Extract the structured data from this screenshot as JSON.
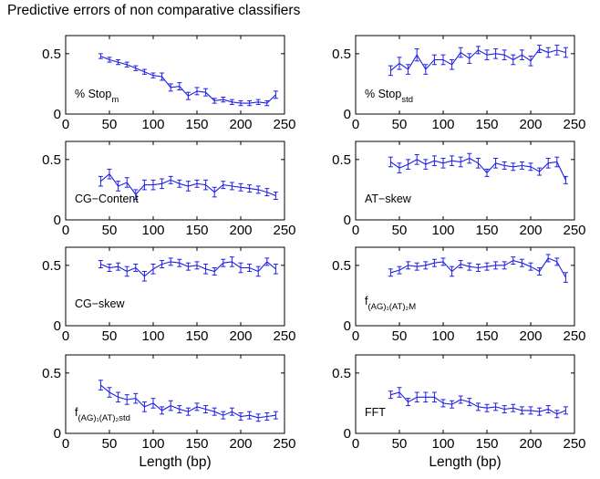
{
  "title": "Predictive errors of non comparative classifiers",
  "colors": {
    "series": "#1f1fe6",
    "axes": "#000000",
    "background": "#ffffff"
  },
  "chart_data": [
    {
      "type": "line",
      "label_main": "% Stop",
      "label_sub": "m",
      "xlabel": "",
      "xlim": [
        0,
        250
      ],
      "ylim": [
        0,
        0.65
      ],
      "xticks": [
        "0",
        "50",
        "100",
        "150",
        "200",
        "250"
      ],
      "yticks": [
        "0",
        "0.5"
      ],
      "x": [
        40,
        50,
        60,
        70,
        80,
        90,
        100,
        110,
        120,
        130,
        140,
        150,
        160,
        170,
        180,
        190,
        200,
        210,
        220,
        230,
        240
      ],
      "y": [
        0.48,
        0.45,
        0.43,
        0.41,
        0.38,
        0.35,
        0.32,
        0.31,
        0.22,
        0.23,
        0.15,
        0.19,
        0.18,
        0.11,
        0.12,
        0.1,
        0.09,
        0.09,
        0.1,
        0.09,
        0.16
      ],
      "err": [
        0.02,
        0.02,
        0.02,
        0.02,
        0.02,
        0.02,
        0.02,
        0.03,
        0.03,
        0.03,
        0.03,
        0.03,
        0.03,
        0.02,
        0.02,
        0.02,
        0.02,
        0.02,
        0.02,
        0.02,
        0.03
      ]
    },
    {
      "type": "line",
      "label_main": "% Stop",
      "label_sub": "std",
      "xlabel": "",
      "xlim": [
        0,
        250
      ],
      "ylim": [
        0,
        0.65
      ],
      "xticks": [
        "0",
        "50",
        "100",
        "150",
        "200",
        "250"
      ],
      "yticks": [
        "0",
        "0.5"
      ],
      "x": [
        40,
        50,
        60,
        70,
        80,
        90,
        100,
        110,
        120,
        130,
        140,
        150,
        160,
        170,
        180,
        190,
        200,
        210,
        220,
        230,
        240
      ],
      "y": [
        0.36,
        0.42,
        0.37,
        0.49,
        0.37,
        0.45,
        0.45,
        0.41,
        0.51,
        0.46,
        0.53,
        0.49,
        0.5,
        0.49,
        0.45,
        0.49,
        0.44,
        0.54,
        0.51,
        0.53,
        0.51
      ],
      "err": [
        0.04,
        0.05,
        0.04,
        0.05,
        0.04,
        0.04,
        0.04,
        0.04,
        0.04,
        0.04,
        0.03,
        0.04,
        0.04,
        0.04,
        0.04,
        0.04,
        0.04,
        0.03,
        0.04,
        0.04,
        0.04
      ]
    },
    {
      "type": "line",
      "label_main": "CG−Content",
      "label_sub": "",
      "xlabel": "",
      "xlim": [
        0,
        250
      ],
      "ylim": [
        0,
        0.65
      ],
      "xticks": [
        "0",
        "50",
        "100",
        "150",
        "200",
        "250"
      ],
      "yticks": [
        "0",
        "0.5"
      ],
      "x": [
        40,
        50,
        60,
        70,
        80,
        90,
        100,
        110,
        120,
        130,
        140,
        150,
        160,
        170,
        180,
        190,
        200,
        210,
        220,
        230,
        240
      ],
      "y": [
        0.32,
        0.38,
        0.28,
        0.31,
        0.21,
        0.29,
        0.29,
        0.3,
        0.33,
        0.3,
        0.28,
        0.3,
        0.29,
        0.23,
        0.29,
        0.28,
        0.27,
        0.26,
        0.25,
        0.23,
        0.2
      ],
      "err": [
        0.04,
        0.04,
        0.04,
        0.04,
        0.04,
        0.04,
        0.04,
        0.04,
        0.03,
        0.03,
        0.04,
        0.03,
        0.04,
        0.04,
        0.03,
        0.03,
        0.03,
        0.03,
        0.03,
        0.03,
        0.03
      ]
    },
    {
      "type": "line",
      "label_main": "AT−skew",
      "label_sub": "",
      "xlabel": "",
      "xlim": [
        0,
        250
      ],
      "ylim": [
        0,
        0.65
      ],
      "xticks": [
        "0",
        "50",
        "100",
        "150",
        "200",
        "250"
      ],
      "yticks": [
        "0",
        "0.5"
      ],
      "x": [
        40,
        50,
        60,
        70,
        80,
        90,
        100,
        110,
        120,
        130,
        140,
        150,
        160,
        170,
        180,
        190,
        200,
        210,
        220,
        230,
        240
      ],
      "y": [
        0.48,
        0.43,
        0.46,
        0.5,
        0.46,
        0.49,
        0.47,
        0.49,
        0.48,
        0.51,
        0.47,
        0.39,
        0.47,
        0.45,
        0.44,
        0.45,
        0.44,
        0.4,
        0.47,
        0.48,
        0.33
      ],
      "err": [
        0.04,
        0.04,
        0.04,
        0.04,
        0.04,
        0.04,
        0.04,
        0.04,
        0.04,
        0.04,
        0.04,
        0.03,
        0.04,
        0.03,
        0.03,
        0.03,
        0.03,
        0.03,
        0.04,
        0.04,
        0.03
      ]
    },
    {
      "type": "line",
      "label_main": "CG−skew",
      "label_sub": "",
      "xlabel": "",
      "xlim": [
        0,
        250
      ],
      "ylim": [
        0,
        0.65
      ],
      "xticks": [
        "0",
        "50",
        "100",
        "150",
        "200",
        "250"
      ],
      "yticks": [
        "0",
        "0.5"
      ],
      "x": [
        40,
        50,
        60,
        70,
        80,
        90,
        100,
        110,
        120,
        130,
        140,
        150,
        160,
        170,
        180,
        190,
        200,
        210,
        220,
        230,
        240
      ],
      "y": [
        0.51,
        0.48,
        0.49,
        0.45,
        0.48,
        0.41,
        0.47,
        0.51,
        0.53,
        0.52,
        0.49,
        0.5,
        0.47,
        0.45,
        0.52,
        0.53,
        0.48,
        0.48,
        0.45,
        0.53,
        0.47
      ],
      "err": [
        0.03,
        0.03,
        0.03,
        0.04,
        0.03,
        0.04,
        0.04,
        0.03,
        0.03,
        0.03,
        0.03,
        0.03,
        0.04,
        0.03,
        0.03,
        0.04,
        0.04,
        0.03,
        0.04,
        0.03,
        0.04
      ]
    },
    {
      "type": "line",
      "label_main": "f",
      "label_sub": "(AG)₁(AT)₂M",
      "xlabel": "",
      "xlim": [
        0,
        250
      ],
      "ylim": [
        0,
        0.65
      ],
      "xticks": [
        "0",
        "50",
        "100",
        "150",
        "200",
        "250"
      ],
      "yticks": [
        "0",
        "0.5"
      ],
      "x": [
        40,
        50,
        60,
        70,
        80,
        90,
        100,
        110,
        120,
        130,
        140,
        150,
        160,
        170,
        180,
        190,
        200,
        210,
        220,
        230,
        240
      ],
      "y": [
        0.44,
        0.46,
        0.5,
        0.49,
        0.5,
        0.52,
        0.53,
        0.45,
        0.51,
        0.49,
        0.48,
        0.49,
        0.5,
        0.5,
        0.54,
        0.52,
        0.49,
        0.45,
        0.56,
        0.53,
        0.4
      ],
      "err": [
        0.03,
        0.03,
        0.03,
        0.03,
        0.03,
        0.03,
        0.03,
        0.04,
        0.03,
        0.03,
        0.03,
        0.03,
        0.03,
        0.03,
        0.03,
        0.03,
        0.03,
        0.03,
        0.03,
        0.03,
        0.04
      ]
    },
    {
      "type": "line",
      "label_main": "f",
      "label_sub": "(AG)₁(AT)₂std",
      "xlabel": "Length (bp)",
      "xlim": [
        0,
        250
      ],
      "ylim": [
        0,
        0.65
      ],
      "xticks": [
        "0",
        "50",
        "100",
        "150",
        "200",
        "250"
      ],
      "yticks": [
        "0",
        "0.5"
      ],
      "x": [
        40,
        50,
        60,
        70,
        80,
        90,
        100,
        110,
        120,
        130,
        140,
        150,
        160,
        170,
        180,
        190,
        200,
        210,
        220,
        230,
        240
      ],
      "y": [
        0.4,
        0.34,
        0.3,
        0.28,
        0.29,
        0.22,
        0.25,
        0.19,
        0.23,
        0.2,
        0.18,
        0.22,
        0.2,
        0.18,
        0.15,
        0.18,
        0.14,
        0.15,
        0.13,
        0.14,
        0.15
      ],
      "err": [
        0.04,
        0.04,
        0.04,
        0.04,
        0.04,
        0.04,
        0.04,
        0.03,
        0.04,
        0.03,
        0.03,
        0.03,
        0.03,
        0.03,
        0.03,
        0.03,
        0.03,
        0.03,
        0.03,
        0.03,
        0.03
      ]
    },
    {
      "type": "line",
      "label_main": "FFT",
      "label_sub": "",
      "xlabel": "Length (bp)",
      "xlim": [
        0,
        250
      ],
      "ylim": [
        0,
        0.65
      ],
      "xticks": [
        "0",
        "50",
        "100",
        "150",
        "200",
        "250"
      ],
      "yticks": [
        "0",
        "0.5"
      ],
      "x": [
        40,
        50,
        60,
        70,
        80,
        90,
        100,
        110,
        120,
        130,
        140,
        150,
        160,
        170,
        180,
        190,
        200,
        210,
        220,
        230,
        240
      ],
      "y": [
        0.32,
        0.34,
        0.26,
        0.3,
        0.3,
        0.3,
        0.25,
        0.24,
        0.28,
        0.26,
        0.22,
        0.21,
        0.22,
        0.2,
        0.21,
        0.19,
        0.19,
        0.18,
        0.2,
        0.16,
        0.19
      ],
      "err": [
        0.03,
        0.04,
        0.03,
        0.04,
        0.04,
        0.04,
        0.03,
        0.03,
        0.03,
        0.03,
        0.03,
        0.03,
        0.03,
        0.03,
        0.03,
        0.03,
        0.03,
        0.03,
        0.03,
        0.03,
        0.03
      ]
    }
  ]
}
